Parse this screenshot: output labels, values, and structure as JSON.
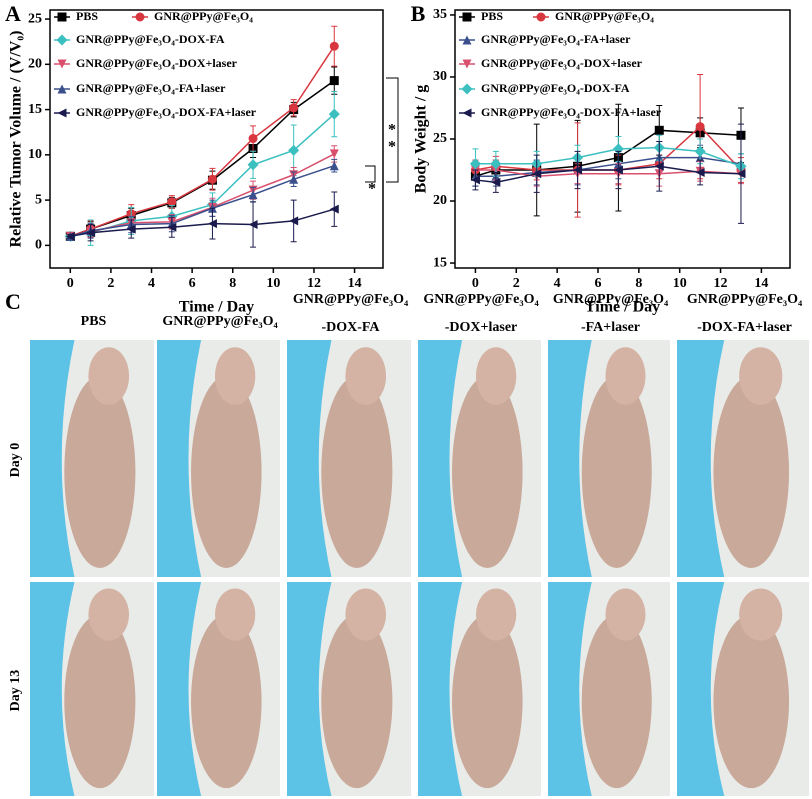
{
  "chart_data": [
    {
      "type": "line",
      "panel_label": "A",
      "x_label": "Time / Day",
      "y_label": "Relative Tumor Volume / (V/V₀)",
      "x": [
        0,
        1,
        3,
        5,
        7,
        9,
        11,
        13
      ],
      "xlim": [
        -1,
        15.4
      ],
      "xticks": [
        0,
        2,
        4,
        6,
        8,
        10,
        12,
        14
      ],
      "ylim": [
        -2.5,
        26
      ],
      "yticks": [
        0,
        5,
        10,
        15,
        20,
        25
      ],
      "annotations": [
        "*",
        "*",
        "*"
      ],
      "series": [
        {
          "name": "PBS",
          "color": "#000000",
          "marker": "square",
          "values": [
            1,
            1.8,
            3.3,
            4.7,
            7.2,
            10.7,
            15.0,
            18.2
          ],
          "errors": [
            0.2,
            0.8,
            0.8,
            0.6,
            1.0,
            1.0,
            0.8,
            1.5
          ]
        },
        {
          "name": "GNR@PPy@Fe₃O₄",
          "color": "#d9373f",
          "marker": "circle",
          "values": [
            1,
            1.8,
            3.5,
            4.8,
            7.3,
            11.8,
            15.2,
            22.0
          ],
          "errors": [
            0.2,
            0.9,
            1.0,
            0.7,
            1.2,
            1.4,
            0.9,
            2.2
          ]
        },
        {
          "name": "GNR@PPy@Fe₃O₄-DOX-FA",
          "color": "#3bbfbf",
          "marker": "diamond",
          "values": [
            1,
            1.4,
            2.7,
            3.2,
            4.5,
            8.9,
            10.5,
            14.5
          ],
          "errors": [
            0.2,
            1.4,
            1.5,
            1.2,
            1.3,
            1.5,
            2.8,
            2.5
          ]
        },
        {
          "name": "GNR@PPy@Fe₃O₄-DOX+laser",
          "color": "#d9506e",
          "marker": "triangle-down",
          "values": [
            1,
            1.5,
            2.5,
            2.6,
            4.2,
            6.1,
            7.8,
            10.1
          ],
          "errors": [
            0.2,
            0.6,
            0.7,
            0.8,
            1.0,
            1.0,
            0.8,
            0.9
          ]
        },
        {
          "name": "GNR@PPy@Fe₃O₄-FA+laser",
          "color": "#3a4f8c",
          "marker": "triangle-up",
          "values": [
            1,
            1.6,
            2.3,
            2.4,
            4.1,
            5.6,
            7.3,
            8.8
          ],
          "errors": [
            0.2,
            0.8,
            0.9,
            0.9,
            0.9,
            0.8,
            0.8,
            0.7
          ]
        },
        {
          "name": "GNR@PPy@Fe₃O₄-DOX-FA+laser",
          "color": "#1a1a4d",
          "marker": "triangle-left",
          "values": [
            1,
            1.4,
            1.8,
            2.0,
            2.4,
            2.3,
            2.7,
            4.0
          ],
          "errors": [
            0.2,
            0.9,
            1.0,
            1.1,
            1.7,
            2.5,
            2.3,
            1.9
          ]
        }
      ]
    },
    {
      "type": "line",
      "panel_label": "B",
      "x_label": "Time / Day",
      "y_label": "Body Weight / g",
      "x": [
        0,
        1,
        3,
        5,
        7,
        9,
        11,
        13
      ],
      "xlim": [
        -1,
        15.4
      ],
      "xticks": [
        0,
        2,
        4,
        6,
        8,
        10,
        12,
        14
      ],
      "ylim": [
        14.6,
        35.4
      ],
      "yticks": [
        15,
        20,
        25,
        30,
        35
      ],
      "series": [
        {
          "name": "PBS",
          "color": "#000000",
          "marker": "square",
          "values": [
            22,
            22.5,
            22.5,
            22.8,
            23.5,
            25.7,
            25.5,
            25.3
          ],
          "errors": [
            0.8,
            0.8,
            3.7,
            3.7,
            4.3,
            2.0,
            1.2,
            2.2
          ]
        },
        {
          "name": "GNR@PPy@Fe₃O₄",
          "color": "#d9373f",
          "marker": "circle",
          "values": [
            22.5,
            22.8,
            22.5,
            22.5,
            22.5,
            23,
            26,
            22.5
          ],
          "errors": [
            0.8,
            0.8,
            0.8,
            3.8,
            1.2,
            1.2,
            4.2,
            1.0
          ]
        },
        {
          "name": "GNR@PPy@Fe₃O₄-FA+laser",
          "color": "#3a4f8c",
          "marker": "triangle-up",
          "values": [
            22,
            22,
            22.3,
            22.5,
            23,
            23.5,
            23.5,
            23
          ],
          "errors": [
            0.8,
            0.8,
            1.0,
            1.2,
            1.2,
            1.0,
            1.0,
            0.8
          ]
        },
        {
          "name": "GNR@PPy@Fe₃O₄-DOX+laser",
          "color": "#d9506e",
          "marker": "triangle-down",
          "values": [
            22.5,
            22.5,
            22,
            22.2,
            22.2,
            22.2,
            22.4,
            22.2
          ],
          "errors": [
            0.8,
            0.8,
            0.8,
            0.8,
            0.8,
            1.0,
            0.8,
            0.8
          ]
        },
        {
          "name": "GNR@PPy@Fe₃O₄-DOX-FA",
          "color": "#3bbfbf",
          "marker": "diamond",
          "values": [
            23,
            23,
            23,
            23.5,
            24.2,
            24.3,
            24,
            22.8
          ],
          "errors": [
            1.2,
            1.0,
            1.0,
            1.0,
            1.0,
            1.0,
            1.0,
            1.0
          ]
        },
        {
          "name": "GNR@PPy@Fe₃O₄-DOX-FA+laser",
          "color": "#1a1a4d",
          "marker": "triangle-left",
          "values": [
            21.7,
            21.5,
            22.2,
            22.5,
            22.5,
            22.8,
            22.3,
            22.2
          ],
          "errors": [
            0.8,
            0.8,
            1.5,
            1.5,
            1.5,
            2.0,
            1.0,
            4.0
          ]
        }
      ]
    }
  ],
  "panel_c": {
    "label": "C",
    "columns": [
      [
        "PBS"
      ],
      [
        "GNR@PPy@Fe₃O₄"
      ],
      [
        "GNR@PPy@Fe₃O₄",
        "-DOX-FA"
      ],
      [
        "GNR@PPy@Fe₃O₄",
        "-DOX+laser"
      ],
      [
        "GNR@PPy@Fe₃O₄",
        "-FA+laser"
      ],
      [
        "GNR@PPy@Fe₃O₄",
        "-DOX-FA+laser"
      ]
    ],
    "rows": [
      "Day 0",
      "Day 13"
    ]
  }
}
